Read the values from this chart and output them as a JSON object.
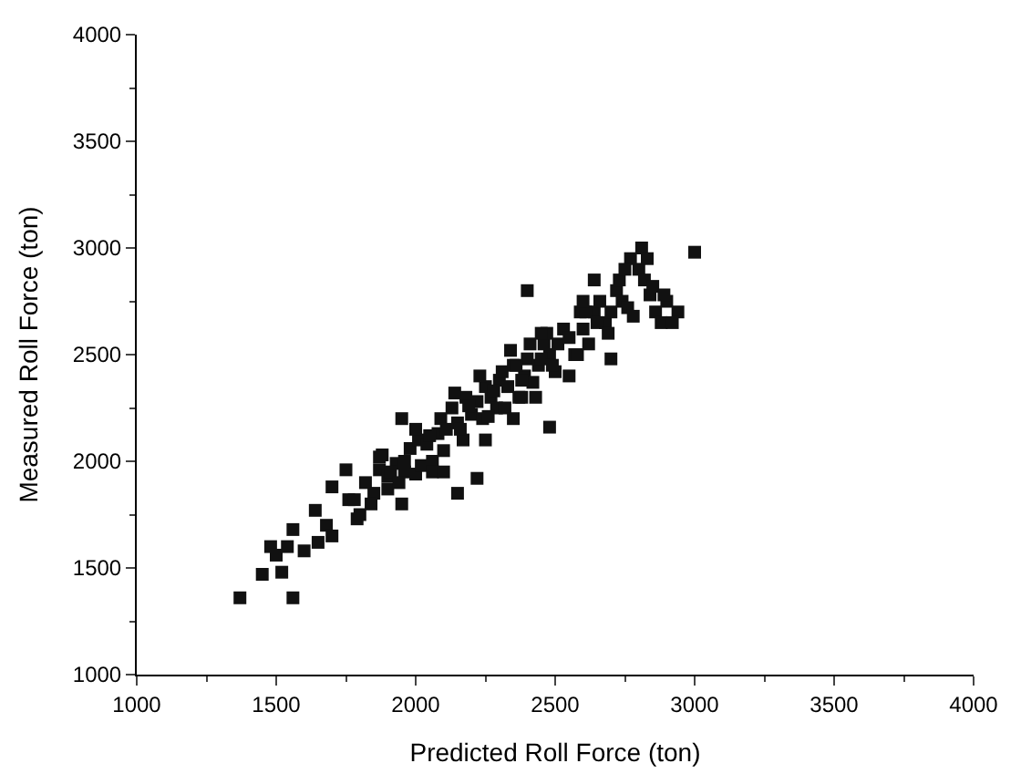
{
  "chart_data": {
    "type": "scatter",
    "xlabel": "Predicted Roll Force (ton)",
    "ylabel": "Measured Roll Force (ton)",
    "xlim": [
      1000,
      4000
    ],
    "ylim": [
      1000,
      4000
    ],
    "xticks": [
      1000,
      1500,
      2000,
      2500,
      3000,
      3500,
      4000
    ],
    "yticks": [
      1000,
      1500,
      2000,
      2500,
      3000,
      3500,
      4000
    ],
    "marker": "square",
    "series": [
      {
        "color": "#111111",
        "x": [
          1370,
          1560,
          1450,
          1520,
          1480,
          1540,
          1500,
          1560,
          1650,
          1640,
          1680,
          1700,
          1750,
          1760,
          1790,
          1820,
          1850,
          1800,
          1870,
          1880,
          1900,
          1930,
          1950,
          1960,
          1980,
          2000,
          1840,
          1870,
          1900,
          1910,
          1940,
          1960,
          2010,
          2040,
          2060,
          2080,
          2100,
          2020,
          2050,
          2090,
          2110,
          2130,
          2150,
          2170,
          2180,
          2200,
          2220,
          2240,
          2250,
          2270,
          2290,
          2300,
          2140,
          2160,
          2190,
          2230,
          2260,
          2280,
          2310,
          2330,
          2350,
          2370,
          2390,
          2400,
          2420,
          2440,
          2460,
          2480,
          2500,
          2320,
          2340,
          2360,
          2380,
          2410,
          2430,
          2450,
          2470,
          2490,
          2510,
          2530,
          2550,
          2570,
          2590,
          2600,
          2620,
          2640,
          2660,
          2680,
          2700,
          2720,
          2740,
          2760,
          2780,
          2800,
          2820,
          2840,
          2860,
          2880,
          2900,
          2550,
          2580,
          2610,
          2650,
          2690,
          2730,
          2770,
          2810,
          2850,
          2890,
          2940,
          3000,
          2920,
          2060,
          2150,
          2350,
          2220,
          2380,
          2480,
          2000,
          2100,
          1950,
          2700,
          2750,
          2830,
          2600,
          2450,
          2250,
          1700,
          1600,
          1780,
          2400,
          2640
        ],
        "values": [
          1360,
          1360,
          1470,
          1480,
          1600,
          1600,
          1560,
          1680,
          1620,
          1770,
          1700,
          1880,
          1960,
          1820,
          1730,
          1900,
          1850,
          1750,
          1960,
          2030,
          1930,
          1990,
          2200,
          1950,
          2060,
          1940,
          1800,
          2020,
          1870,
          1950,
          1900,
          2000,
          2100,
          2080,
          2000,
          2130,
          2050,
          1980,
          2120,
          2200,
          2150,
          2250,
          2180,
          2100,
          2300,
          2220,
          2280,
          2200,
          2350,
          2300,
          2250,
          2380,
          2320,
          2150,
          2260,
          2400,
          2210,
          2330,
          2420,
          2350,
          2450,
          2300,
          2400,
          2480,
          2370,
          2450,
          2550,
          2500,
          2420,
          2250,
          2520,
          2450,
          2380,
          2550,
          2300,
          2480,
          2600,
          2450,
          2550,
          2620,
          2580,
          2500,
          2700,
          2620,
          2550,
          2700,
          2750,
          2650,
          2700,
          2800,
          2750,
          2720,
          2680,
          2900,
          2850,
          2780,
          2700,
          2650,
          2750,
          2400,
          2500,
          2700,
          2650,
          2600,
          2850,
          2950,
          3000,
          2820,
          2780,
          2700,
          2980,
          2650,
          1950,
          1850,
          2200,
          1920,
          2300,
          2160,
          2150,
          1950,
          1800,
          2480,
          2900,
          2950,
          2750,
          2600,
          2100,
          1650,
          1580,
          1820,
          2800,
          2850
        ]
      }
    ]
  }
}
